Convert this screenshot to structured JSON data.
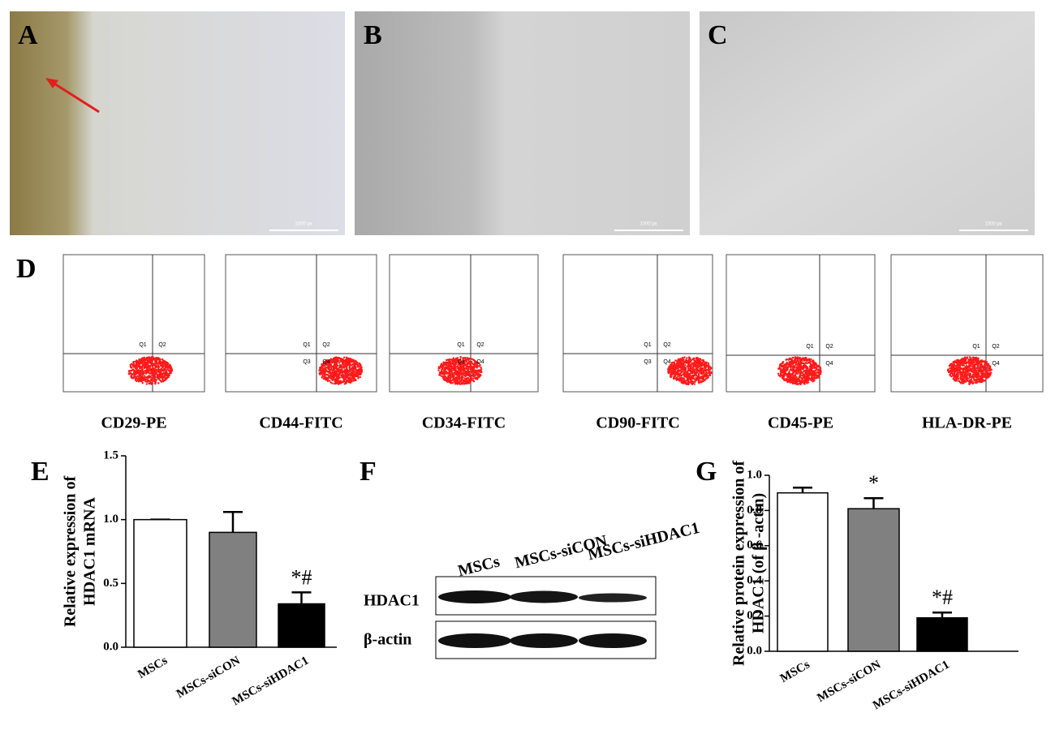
{
  "panel_labels": [
    "A",
    "B",
    "C",
    "D"
  ],
  "scale_bars": [
    "1000 px",
    "1000 px",
    "1000 px"
  ],
  "flow_plots": [
    {
      "label": "CD29-PE",
      "quadrants": [
        "Q1",
        "Q2"
      ]
    },
    {
      "label": "CD44-FITC",
      "quadrants": [
        "Q1",
        "Q2",
        "Q3",
        "Q4"
      ]
    },
    {
      "label": "CD34-FITC",
      "quadrants": [
        "Q1",
        "Q2",
        "Q3",
        "Q4"
      ]
    },
    {
      "label": "CD90-FITC",
      "quadrants": [
        "Q1",
        "Q2",
        "Q3",
        "Q4"
      ]
    },
    {
      "label": "CD45-PE",
      "quadrants": [
        "Q1",
        "Q2",
        "Q4"
      ]
    },
    {
      "label": "HLA-DR-PE",
      "quadrants": [
        "Q1",
        "Q2",
        "Q4"
      ]
    }
  ],
  "blot": {
    "label": "F",
    "columns": [
      "MSCs",
      "MSCs-siCON",
      "MSCs-siHDAC1"
    ],
    "rows": [
      "HDAC1",
      "β-actin"
    ]
  },
  "chart_data": [
    {
      "type": "bar",
      "label": "E",
      "ylabel": [
        "Relative expression of",
        "HDAC1 mRNA"
      ],
      "categories": [
        "MSCs",
        "MSCs-siCON",
        "MSCs-siHDAC1"
      ],
      "values": [
        1.0,
        0.9,
        0.34
      ],
      "errors": [
        0,
        0.16,
        0.09
      ],
      "colors": [
        "#ffffff",
        "#808080",
        "#000000"
      ],
      "annotations": [
        null,
        null,
        "*#"
      ],
      "ylim": [
        0,
        1.5
      ],
      "yticks": [
        {
          "value": 0,
          "label": "0.0"
        },
        0.5,
        {
          "value": 1,
          "label": "1.0"
        },
        1.5
      ]
    },
    {
      "type": "bar",
      "label": "G",
      "ylabel": [
        "Relative protein expression of",
        "HDAC1 (of β -actin)"
      ],
      "categories": [
        "MSCs",
        "MSCs-siCON",
        "MSCs-siHDAC1"
      ],
      "values": [
        0.9,
        0.81,
        0.19
      ],
      "errors": [
        0.03,
        0.06,
        0.03
      ],
      "colors": [
        "#ffffff",
        "#808080",
        "#000000"
      ],
      "annotations": [
        null,
        "*",
        "*#"
      ],
      "ylim": [
        0,
        1.0
      ],
      "yticks": [
        {
          "value": 0,
          "label": "0.0"
        },
        0.2,
        0.4,
        0.6,
        0.8,
        {
          "value": 1,
          "label": "1.0"
        }
      ]
    }
  ]
}
